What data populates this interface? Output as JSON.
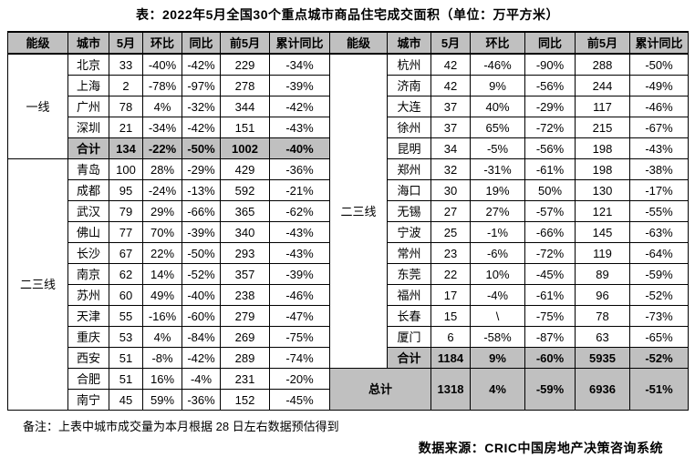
{
  "title": "表：2022年5月全国30个重点城市商品住宅成交面积（单位：万平方米）",
  "columns": [
    "能级",
    "城市",
    "5月",
    "环比",
    "同比",
    "前5月",
    "累计同比"
  ],
  "left": {
    "sections": [
      {
        "tier": "一线",
        "rows": [
          [
            "北京",
            "33",
            "-40%",
            "-42%",
            "229",
            "-34%"
          ],
          [
            "上海",
            "2",
            "-78%",
            "-97%",
            "278",
            "-39%"
          ],
          [
            "广州",
            "78",
            "4%",
            "-32%",
            "344",
            "-42%"
          ],
          [
            "深圳",
            "21",
            "-34%",
            "-42%",
            "151",
            "-43%"
          ]
        ],
        "total": [
          "合计",
          "134",
          "-22%",
          "-50%",
          "1002",
          "-40%"
        ]
      },
      {
        "tier": "二三线",
        "rows": [
          [
            "青岛",
            "100",
            "28%",
            "-29%",
            "429",
            "-36%"
          ],
          [
            "成都",
            "95",
            "-24%",
            "-13%",
            "592",
            "-21%"
          ],
          [
            "武汉",
            "79",
            "29%",
            "-66%",
            "365",
            "-62%"
          ],
          [
            "佛山",
            "77",
            "70%",
            "-39%",
            "340",
            "-43%"
          ],
          [
            "长沙",
            "67",
            "22%",
            "-50%",
            "293",
            "-43%"
          ],
          [
            "南京",
            "62",
            "14%",
            "-52%",
            "357",
            "-39%"
          ],
          [
            "苏州",
            "60",
            "49%",
            "-40%",
            "238",
            "-46%"
          ],
          [
            "天津",
            "55",
            "-16%",
            "-60%",
            "279",
            "-47%"
          ],
          [
            "重庆",
            "53",
            "4%",
            "-84%",
            "269",
            "-75%"
          ],
          [
            "西安",
            "51",
            "-8%",
            "-42%",
            "289",
            "-74%"
          ],
          [
            "合肥",
            "51",
            "16%",
            "-4%",
            "231",
            "-20%"
          ],
          [
            "南宁",
            "45",
            "59%",
            "-36%",
            "152",
            "-45%"
          ]
        ]
      }
    ]
  },
  "right": {
    "tier": "二三线",
    "rows": [
      [
        "杭州",
        "42",
        "-46%",
        "-90%",
        "288",
        "-50%"
      ],
      [
        "济南",
        "42",
        "9%",
        "-56%",
        "244",
        "-49%"
      ],
      [
        "大连",
        "37",
        "40%",
        "-29%",
        "117",
        "-46%"
      ],
      [
        "徐州",
        "37",
        "65%",
        "-72%",
        "215",
        "-67%"
      ],
      [
        "昆明",
        "34",
        "-5%",
        "-56%",
        "198",
        "-43%"
      ],
      [
        "郑州",
        "32",
        "-31%",
        "-61%",
        "198",
        "-38%"
      ],
      [
        "海口",
        "30",
        "19%",
        "50%",
        "130",
        "-17%"
      ],
      [
        "无锡",
        "27",
        "27%",
        "-57%",
        "121",
        "-55%"
      ],
      [
        "宁波",
        "25",
        "-1%",
        "-66%",
        "145",
        "-63%"
      ],
      [
        "常州",
        "23",
        "-6%",
        "-72%",
        "119",
        "-64%"
      ],
      [
        "东莞",
        "22",
        "10%",
        "-45%",
        "89",
        "-59%"
      ],
      [
        "福州",
        "17",
        "-4%",
        "-61%",
        "96",
        "-52%"
      ],
      [
        "长春",
        "15",
        "\\",
        "-75%",
        "78",
        "-73%"
      ],
      [
        "厦门",
        "6",
        "-58%",
        "-87%",
        "63",
        "-65%"
      ]
    ],
    "total": [
      "合计",
      "1184",
      "9%",
      "-60%",
      "5935",
      "-52%"
    ]
  },
  "grand_total": {
    "label": "总计",
    "values": [
      "1318",
      "4%",
      "-59%",
      "6936",
      "-51%"
    ]
  },
  "note": "备注：上表中城市成交量为本月根据 28 日左右数据预估得到",
  "source": "数据来源：CRIC中国房地产决策咨询系统",
  "colors": {
    "header_bg": "#c0c0c0",
    "total_bg": "#c0c0c0",
    "border": "#000000",
    "text": "#000000"
  }
}
